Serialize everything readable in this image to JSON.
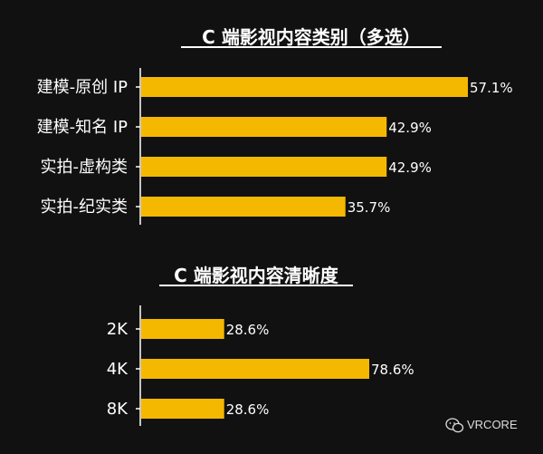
{
  "chart_data": [
    {
      "type": "bar",
      "orientation": "horizontal",
      "title": "C 端影视内容类别（多选）",
      "categories": [
        "建模-原创 IP",
        "建模-知名 IP",
        "实拍-虚构类",
        "实拍-纪实类"
      ],
      "values": [
        57.1,
        42.9,
        42.9,
        35.7
      ],
      "value_labels": [
        "57.1%",
        "42.9%",
        "42.9%",
        "35.7%"
      ],
      "xlim": [
        0,
        80
      ],
      "grid": false,
      "bar_color": "#F5B800"
    },
    {
      "type": "bar",
      "orientation": "horizontal",
      "title": "C 端影视内容清晰度",
      "categories": [
        "2K",
        "4K",
        "8K"
      ],
      "values": [
        28.6,
        78.6,
        28.6
      ],
      "value_labels": [
        "28.6%",
        "78.6%",
        "28.6%"
      ],
      "xlim": [
        0,
        100
      ],
      "grid": false,
      "bar_color": "#F5B800"
    }
  ],
  "watermark": {
    "text": "VRCORE",
    "icon": "wechat-icon"
  },
  "colors": {
    "background": "#111111",
    "bar": "#F5B800",
    "text": "#FFFFFF"
  }
}
